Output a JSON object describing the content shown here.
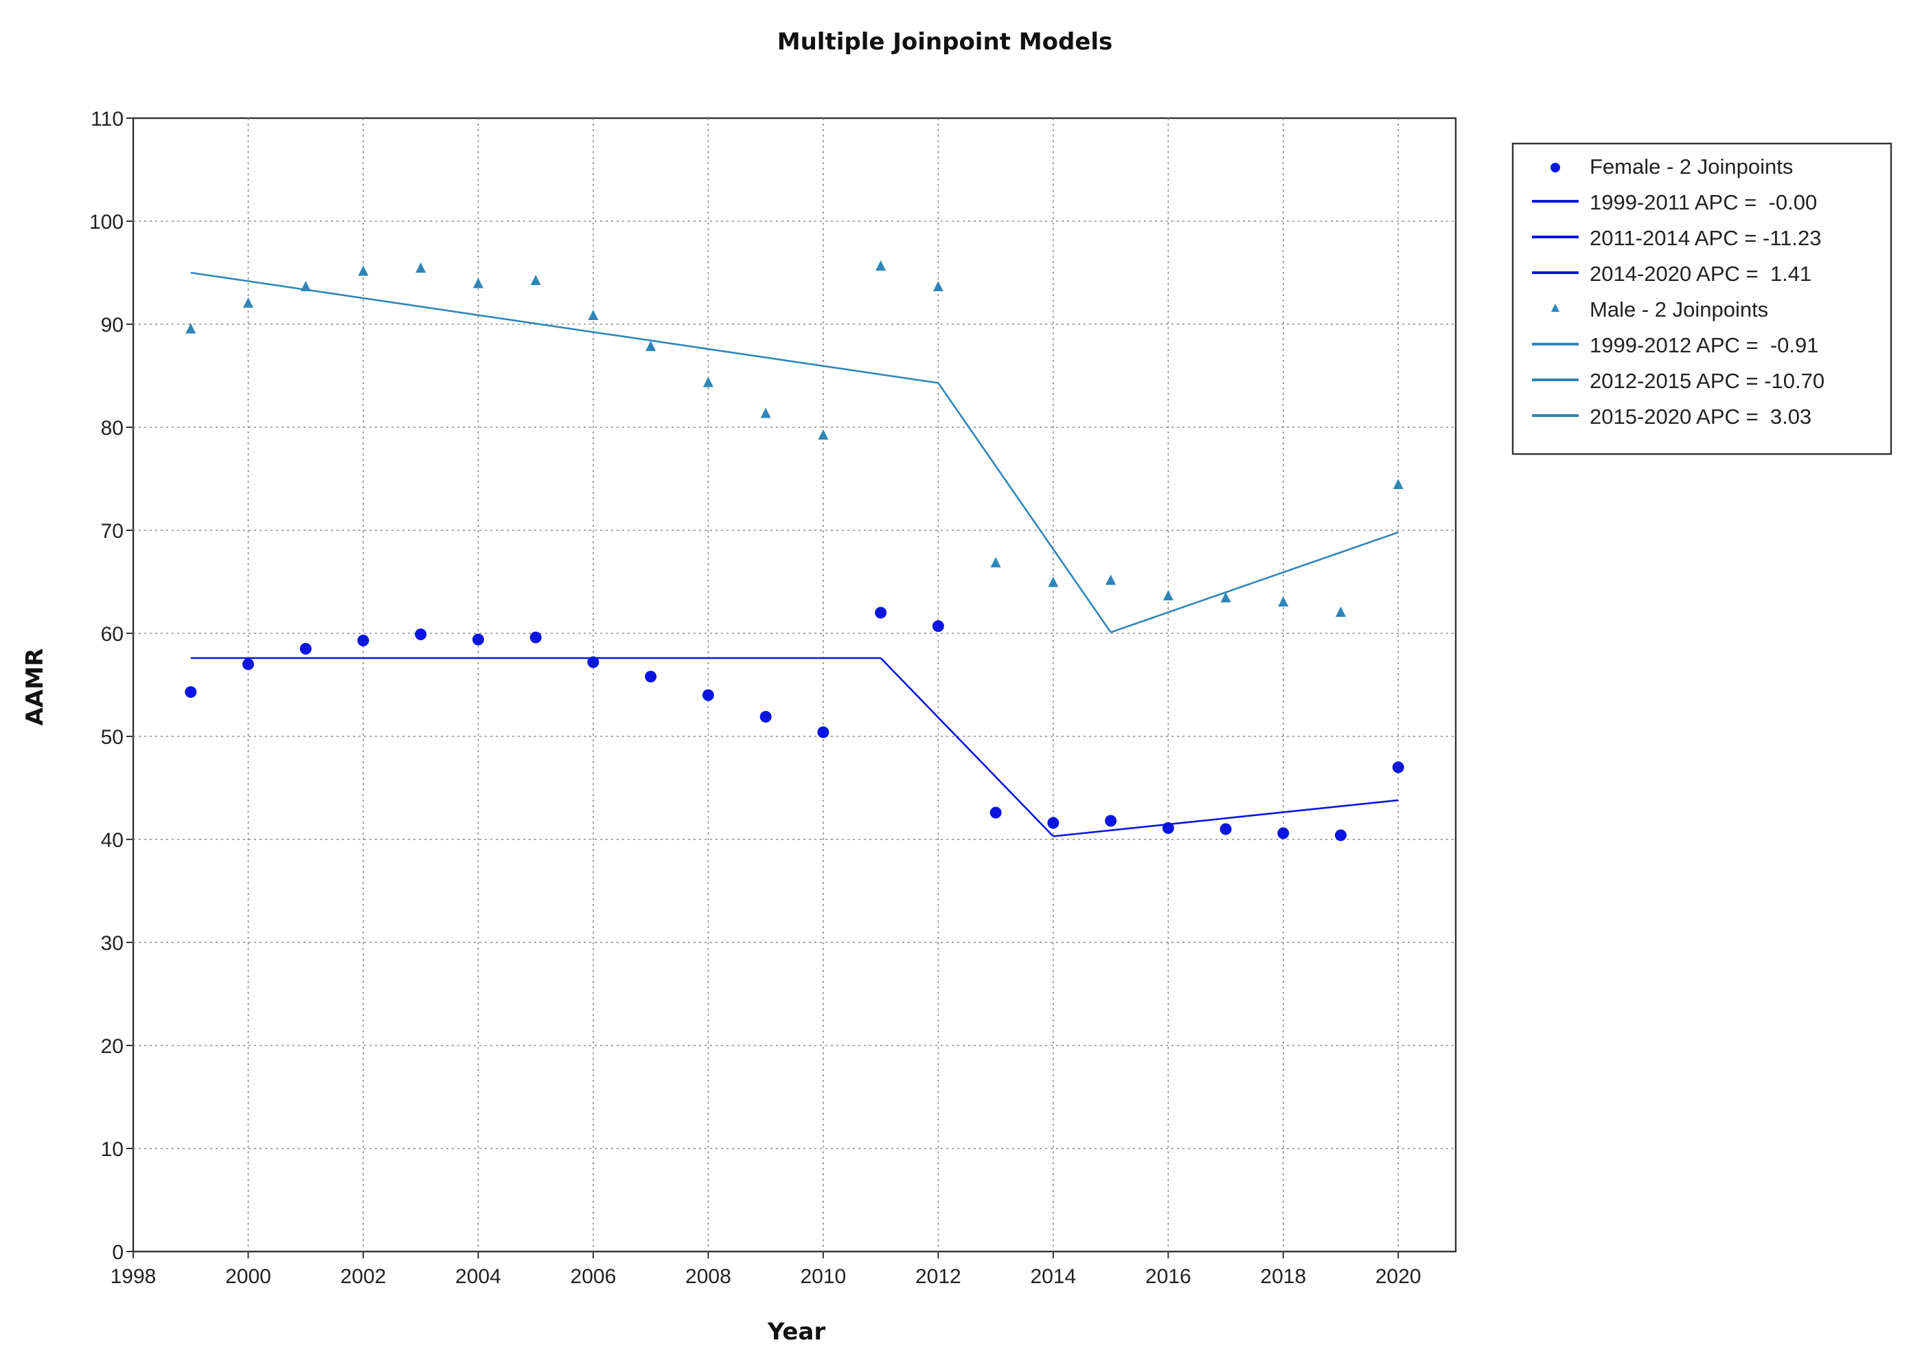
{
  "chart_data": {
    "type": "line",
    "title": "Multiple Joinpoint Models",
    "xlabel": "Year",
    "ylabel": "AAMR",
    "xlim": [
      1998,
      2021
    ],
    "ylim": [
      0,
      110
    ],
    "x_ticks": [
      1998,
      2000,
      2002,
      2004,
      2006,
      2008,
      2010,
      2012,
      2014,
      2016,
      2018,
      2020
    ],
    "y_ticks": [
      0,
      10,
      20,
      30,
      40,
      50,
      60,
      70,
      80,
      90,
      100,
      110
    ],
    "grid": true,
    "legend_position": "right",
    "series": [
      {
        "name": "Female - 2 Joinpoints",
        "marker": "circle",
        "color": "#0a16e0",
        "x": [
          1999,
          2000,
          2001,
          2002,
          2003,
          2004,
          2005,
          2006,
          2007,
          2008,
          2009,
          2010,
          2011,
          2012,
          2013,
          2014,
          2015,
          2016,
          2017,
          2018,
          2019,
          2020
        ],
        "y": [
          54.3,
          57.0,
          58.5,
          59.3,
          59.9,
          59.4,
          59.6,
          57.2,
          55.8,
          54.0,
          51.9,
          50.4,
          62.0,
          60.7,
          42.6,
          41.6,
          41.8,
          41.1,
          41.0,
          40.6,
          40.4,
          47.0
        ]
      },
      {
        "name": "Male - 2 Joinpoints",
        "marker": "triangle",
        "color": "#2e86b8",
        "x": [
          1999,
          2000,
          2001,
          2002,
          2003,
          2004,
          2005,
          2006,
          2007,
          2008,
          2009,
          2010,
          2011,
          2012,
          2013,
          2014,
          2015,
          2016,
          2017,
          2018,
          2019,
          2020
        ],
        "y": [
          89.5,
          92.0,
          93.6,
          95.1,
          95.4,
          93.9,
          94.2,
          90.8,
          87.8,
          84.3,
          81.3,
          79.2,
          95.6,
          93.6,
          66.8,
          64.9,
          65.1,
          63.6,
          63.4,
          63.0,
          62.0,
          74.4
        ]
      }
    ],
    "fits": [
      {
        "name": "1999-2011 APC =  -0.00",
        "color": "#0a16e0",
        "x": [
          1999,
          2011
        ],
        "y": [
          57.6,
          57.6
        ]
      },
      {
        "name": "2011-2014 APC = -11.23",
        "color": "#0a16e0",
        "x": [
          2011,
          2014
        ],
        "y": [
          57.6,
          40.3
        ]
      },
      {
        "name": "2014-2020 APC =  1.41",
        "color": "#0a16e0",
        "x": [
          2014,
          2020
        ],
        "y": [
          40.3,
          43.8
        ]
      },
      {
        "name": "1999-2012 APC =  -0.91",
        "color": "#2e86b8",
        "x": [
          1999,
          2012
        ],
        "y": [
          95.0,
          84.3
        ]
      },
      {
        "name": "2012-2015 APC = -10.70",
        "color": "#2e86b8",
        "x": [
          2012,
          2015
        ],
        "y": [
          84.3,
          60.1
        ]
      },
      {
        "name": "2015-2020 APC =  3.03",
        "color": "#2e86b8",
        "x": [
          2015,
          2020
        ],
        "y": [
          60.1,
          69.8
        ]
      }
    ],
    "legend": [
      {
        "label": "Female - 2 Joinpoints",
        "kind": "circle",
        "color": "#0a16e0"
      },
      {
        "label": "1999-2011 APC =  -0.00",
        "kind": "line",
        "color": "#0a16e0"
      },
      {
        "label": "2011-2014 APC = -11.23",
        "kind": "line",
        "color": "#0a16e0"
      },
      {
        "label": "2014-2020 APC =  1.41",
        "kind": "line",
        "color": "#0a16e0"
      },
      {
        "label": "Male - 2 Joinpoints",
        "kind": "triangle",
        "color": "#2e86b8"
      },
      {
        "label": "1999-2012 APC =  -0.91",
        "kind": "line",
        "color": "#2e86b8"
      },
      {
        "label": "2012-2015 APC = -10.70",
        "kind": "line",
        "color": "#2e86b8"
      },
      {
        "label": "2015-2020 APC =  3.03",
        "kind": "line",
        "color": "#2e86b8"
      }
    ]
  }
}
